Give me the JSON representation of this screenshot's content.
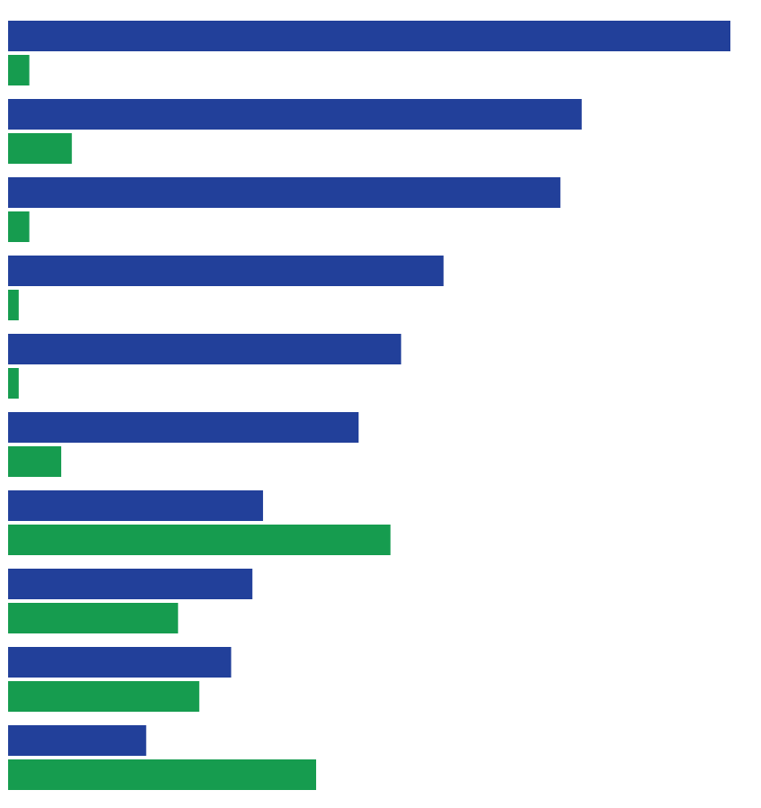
{
  "chart_data": {
    "type": "bar",
    "orientation": "horizontal",
    "categories": [
      "",
      "",
      "",
      "",
      "",
      "",
      "",
      "",
      "",
      ""
    ],
    "series": [
      {
        "values": [
          68,
          54,
          52,
          41,
          37,
          33,
          24,
          23,
          21,
          13
        ]
      },
      {
        "values": [
          2,
          6,
          2,
          1,
          1,
          5,
          36,
          16,
          18,
          29
        ]
      }
    ],
    "xlim": [
      0,
      68
    ],
    "grid": false,
    "legend": "none",
    "colors": [
      "#22409a",
      "#169c4f"
    ]
  }
}
